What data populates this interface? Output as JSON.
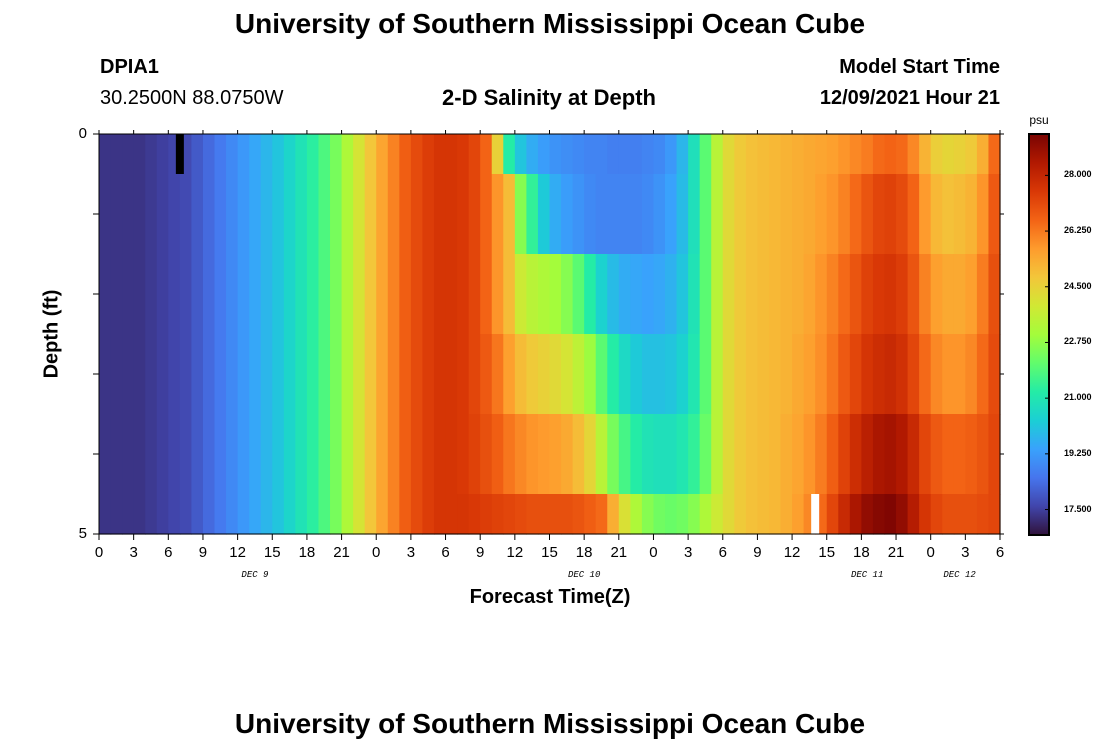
{
  "page": {
    "title_top": "University of Southern Mississippi Ocean Cube",
    "title_bottom": "University of Southern Mississippi Ocean Cube",
    "station": {
      "id": "DPIA1",
      "coords": "30.2500N  88.0750W"
    },
    "plot_title": "2-D Salinity at Depth",
    "model_start": {
      "label": "Model Start Time",
      "value": "12/09/2021 Hour 21"
    }
  },
  "chart_data": {
    "type": "heatmap",
    "title": "2-D Salinity at Depth",
    "xlabel": "Forecast Time(Z)",
    "ylabel": "Depth (ft)",
    "x_tick_labels": [
      "0",
      "3",
      "6",
      "9",
      "12",
      "15",
      "18",
      "21",
      "0",
      "3",
      "6",
      "9",
      "12",
      "15",
      "18",
      "21",
      "0",
      "3",
      "6",
      "9",
      "12",
      "15",
      "18",
      "21",
      "0",
      "3",
      "6"
    ],
    "x_day_labels": [
      "DEC 9",
      "DEC 10",
      "DEC 11",
      "DEC 12"
    ],
    "y_tick_labels": [
      "0",
      "5"
    ],
    "depth_range_ft": [
      0,
      5
    ],
    "forecast_hours": 78,
    "colorbar": {
      "unit": "psu",
      "min": 16.7,
      "max": 29.3,
      "tick_labels": [
        "28.000",
        "26.250",
        "24.500",
        "22.750",
        "21.000",
        "19.250",
        "17.500"
      ],
      "colors": [
        "#30123b",
        "#4145ab",
        "#4675ed",
        "#39a2fc",
        "#1bcfd4",
        "#24eca6",
        "#61fc6c",
        "#a4fc3b",
        "#d1e834",
        "#f3c63a",
        "#fe9b2d",
        "#f36315",
        "#d93806",
        "#b11901",
        "#7a0402"
      ]
    },
    "layers": [
      {
        "depth_ft": [
          0.0,
          0.5
        ],
        "salinity": [
          17.3,
          17.3,
          17.3,
          17.3,
          17.4,
          17.5,
          17.6,
          17.7,
          18.0,
          18.3,
          18.6,
          18.9,
          19.2,
          19.5,
          19.8,
          20.1,
          20.5,
          20.9,
          21.3,
          21.8,
          22.4,
          23.2,
          24.0,
          24.8,
          25.5,
          26.1,
          26.7,
          27.1,
          27.4,
          27.6,
          27.6,
          27.5,
          27.2,
          26.6,
          24.5,
          21.2,
          20.1,
          19.6,
          19.3,
          19.1,
          19.0,
          18.9,
          18.8,
          18.8,
          18.7,
          18.7,
          18.7,
          18.8,
          18.9,
          19.2,
          19.8,
          20.8,
          22.0,
          23.4,
          24.3,
          24.7,
          24.9,
          25.0,
          25.1,
          25.2,
          25.3,
          25.4,
          25.5,
          25.6,
          25.8,
          26.0,
          26.2,
          26.5,
          26.6,
          26.5,
          26.0,
          25.2,
          24.6,
          24.4,
          24.5,
          24.7,
          25.3,
          26.5
        ]
      },
      {
        "depth_ft": [
          0.5,
          1.5
        ],
        "salinity": [
          17.3,
          17.3,
          17.3,
          17.3,
          17.4,
          17.5,
          17.6,
          17.7,
          18.0,
          18.3,
          18.6,
          18.9,
          19.2,
          19.5,
          19.8,
          20.1,
          20.5,
          20.9,
          21.3,
          21.8,
          22.4,
          23.2,
          24.0,
          24.8,
          25.5,
          26.1,
          26.7,
          27.1,
          27.4,
          27.6,
          27.6,
          27.5,
          27.2,
          26.6,
          25.8,
          25.0,
          22.6,
          21.4,
          20.2,
          19.6,
          19.3,
          19.1,
          18.9,
          18.8,
          18.8,
          18.8,
          18.8,
          18.9,
          19.1,
          19.4,
          19.9,
          20.8,
          22.0,
          23.4,
          24.3,
          24.7,
          24.9,
          25.0,
          25.1,
          25.2,
          25.3,
          25.4,
          25.6,
          25.8,
          26.1,
          26.5,
          26.9,
          27.2,
          27.3,
          27.1,
          26.6,
          25.7,
          25.1,
          24.9,
          25.0,
          25.2,
          25.8,
          26.8
        ]
      },
      {
        "depth_ft": [
          1.5,
          2.5
        ],
        "salinity": [
          17.3,
          17.3,
          17.3,
          17.3,
          17.4,
          17.5,
          17.6,
          17.7,
          18.0,
          18.3,
          18.6,
          18.9,
          19.2,
          19.5,
          19.8,
          20.1,
          20.5,
          20.9,
          21.3,
          21.8,
          22.4,
          23.2,
          24.0,
          24.8,
          25.5,
          26.1,
          26.7,
          27.1,
          27.4,
          27.6,
          27.6,
          27.5,
          27.2,
          26.6,
          25.8,
          25.0,
          23.8,
          23.4,
          23.2,
          23.0,
          22.6,
          22.0,
          21.2,
          20.4,
          19.9,
          19.6,
          19.5,
          19.4,
          19.5,
          19.7,
          20.1,
          20.9,
          22.0,
          23.4,
          24.3,
          24.7,
          24.9,
          25.0,
          25.1,
          25.2,
          25.3,
          25.5,
          25.8,
          26.1,
          26.5,
          26.9,
          27.3,
          27.5,
          27.6,
          27.4,
          26.9,
          26.1,
          25.6,
          25.4,
          25.4,
          25.6,
          26.2,
          27.0
        ]
      },
      {
        "depth_ft": [
          2.5,
          3.5
        ],
        "salinity": [
          17.3,
          17.3,
          17.3,
          17.3,
          17.4,
          17.5,
          17.6,
          17.7,
          18.0,
          18.3,
          18.6,
          18.9,
          19.2,
          19.5,
          19.8,
          20.1,
          20.5,
          20.9,
          21.3,
          21.8,
          22.4,
          23.2,
          24.0,
          24.8,
          25.5,
          26.1,
          26.7,
          27.1,
          27.4,
          27.6,
          27.6,
          27.5,
          27.2,
          26.8,
          26.3,
          25.6,
          25.0,
          24.7,
          24.5,
          24.3,
          24.0,
          23.5,
          22.9,
          22.0,
          21.2,
          20.6,
          20.2,
          20.0,
          20.0,
          20.1,
          20.4,
          21.0,
          22.0,
          23.4,
          24.3,
          24.7,
          24.9,
          25.0,
          25.1,
          25.2,
          25.4,
          25.6,
          25.9,
          26.3,
          26.8,
          27.2,
          27.6,
          27.8,
          27.9,
          27.7,
          27.2,
          26.5,
          26.0,
          25.8,
          25.8,
          26.0,
          26.5,
          27.1
        ]
      },
      {
        "depth_ft": [
          3.5,
          4.5
        ],
        "salinity": [
          17.3,
          17.3,
          17.3,
          17.3,
          17.4,
          17.5,
          17.6,
          17.7,
          18.0,
          18.3,
          18.6,
          18.9,
          19.2,
          19.5,
          19.8,
          20.1,
          20.5,
          20.9,
          21.3,
          21.8,
          22.4,
          23.2,
          24.0,
          24.8,
          25.5,
          26.1,
          26.7,
          27.1,
          27.4,
          27.6,
          27.6,
          27.5,
          27.3,
          27.0,
          26.7,
          26.3,
          26.0,
          25.8,
          25.7,
          25.6,
          25.4,
          25.0,
          24.4,
          23.4,
          22.4,
          21.7,
          21.2,
          20.9,
          20.8,
          20.8,
          21.0,
          21.4,
          22.2,
          23.4,
          24.3,
          24.7,
          24.9,
          25.0,
          25.1,
          25.3,
          25.5,
          25.8,
          26.2,
          26.7,
          27.3,
          27.8,
          28.2,
          28.5,
          28.6,
          28.4,
          27.9,
          27.2,
          26.8,
          26.6,
          26.6,
          26.7,
          26.9,
          27.2
        ]
      },
      {
        "depth_ft": [
          4.5,
          5.0
        ],
        "salinity": [
          17.3,
          17.3,
          17.3,
          17.3,
          17.4,
          17.5,
          17.6,
          17.7,
          18.0,
          18.3,
          18.6,
          18.9,
          19.2,
          19.5,
          19.8,
          20.1,
          20.5,
          20.9,
          21.3,
          21.8,
          22.4,
          23.2,
          24.0,
          24.8,
          25.5,
          26.1,
          26.7,
          27.1,
          27.4,
          27.6,
          27.6,
          27.6,
          27.5,
          27.4,
          27.3,
          27.2,
          27.1,
          27.0,
          27.0,
          27.0,
          27.0,
          26.9,
          26.7,
          26.5,
          25.3,
          24.1,
          23.2,
          22.6,
          22.3,
          22.2,
          22.3,
          22.6,
          23.2,
          23.8,
          24.3,
          24.7,
          24.9,
          25.0,
          25.1,
          25.3,
          25.6,
          26.0,
          26.5,
          27.2,
          27.9,
          28.5,
          28.9,
          29.1,
          29.2,
          28.9,
          28.3,
          27.6,
          27.2,
          27.0,
          27.0,
          27.0,
          27.1,
          27.2
        ]
      }
    ],
    "markers": [
      {
        "color": "#000000",
        "hour_range": [
          7,
          8
        ],
        "depth_ft": [
          0.0,
          0.5
        ]
      },
      {
        "color": "#ffffff",
        "hour_range": [
          62,
          63
        ],
        "depth_ft": [
          4.5,
          5.0
        ]
      }
    ]
  }
}
